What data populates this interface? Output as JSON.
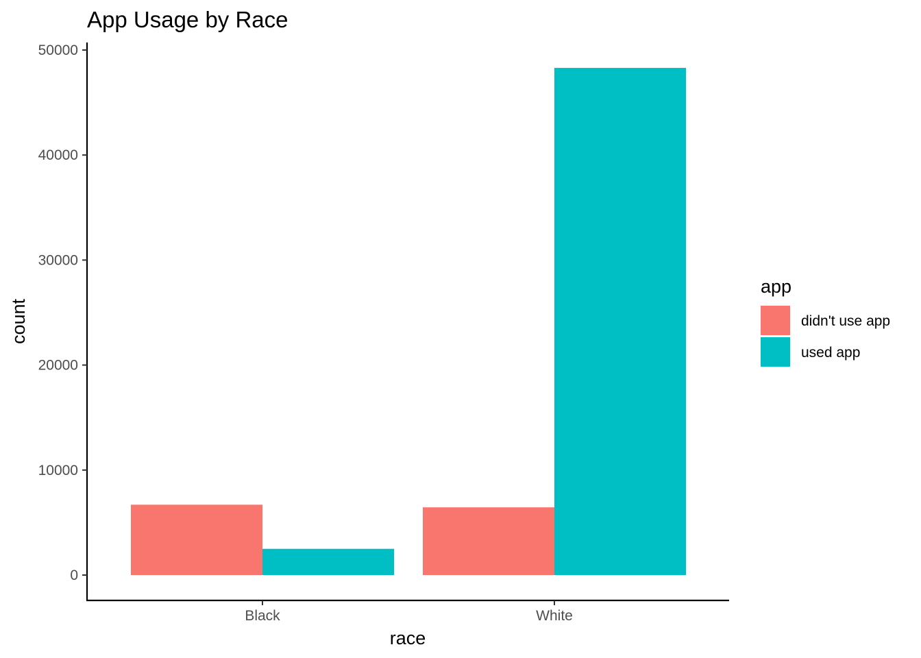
{
  "chart_data": {
    "type": "bar",
    "title": "App Usage by Race",
    "xlabel": "race",
    "ylabel": "count",
    "categories": [
      "Black",
      "White"
    ],
    "series": [
      {
        "name": "didn't use app",
        "color": "#F8766D",
        "values": [
          6700,
          6450
        ]
      },
      {
        "name": "used app",
        "color": "#00BFC4",
        "values": [
          2500,
          48300
        ]
      }
    ],
    "ylim": [
      0,
      50000
    ],
    "yticks": [
      0,
      10000,
      20000,
      30000,
      40000,
      50000
    ],
    "grid": false,
    "legend": {
      "title": "app",
      "position": "right"
    }
  }
}
